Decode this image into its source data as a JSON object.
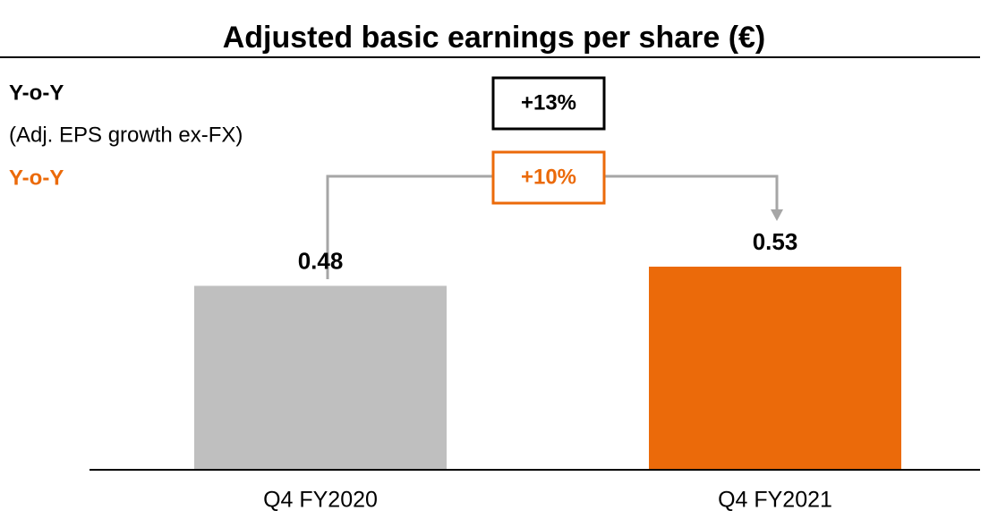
{
  "chart_data": {
    "type": "bar",
    "title": "Adjusted basic earnings per share (€)",
    "categories": [
      "Q4 FY2020",
      "Q4 FY2021"
    ],
    "values": [
      0.48,
      0.53
    ],
    "colors": [
      "#bfbfbf",
      "#eb6a0a"
    ],
    "annotations": [
      "Y-o-Y",
      "(Adj. EPS growth ex-FX)",
      "Y-o-Y",
      "+13%",
      "+10%"
    ]
  }
}
